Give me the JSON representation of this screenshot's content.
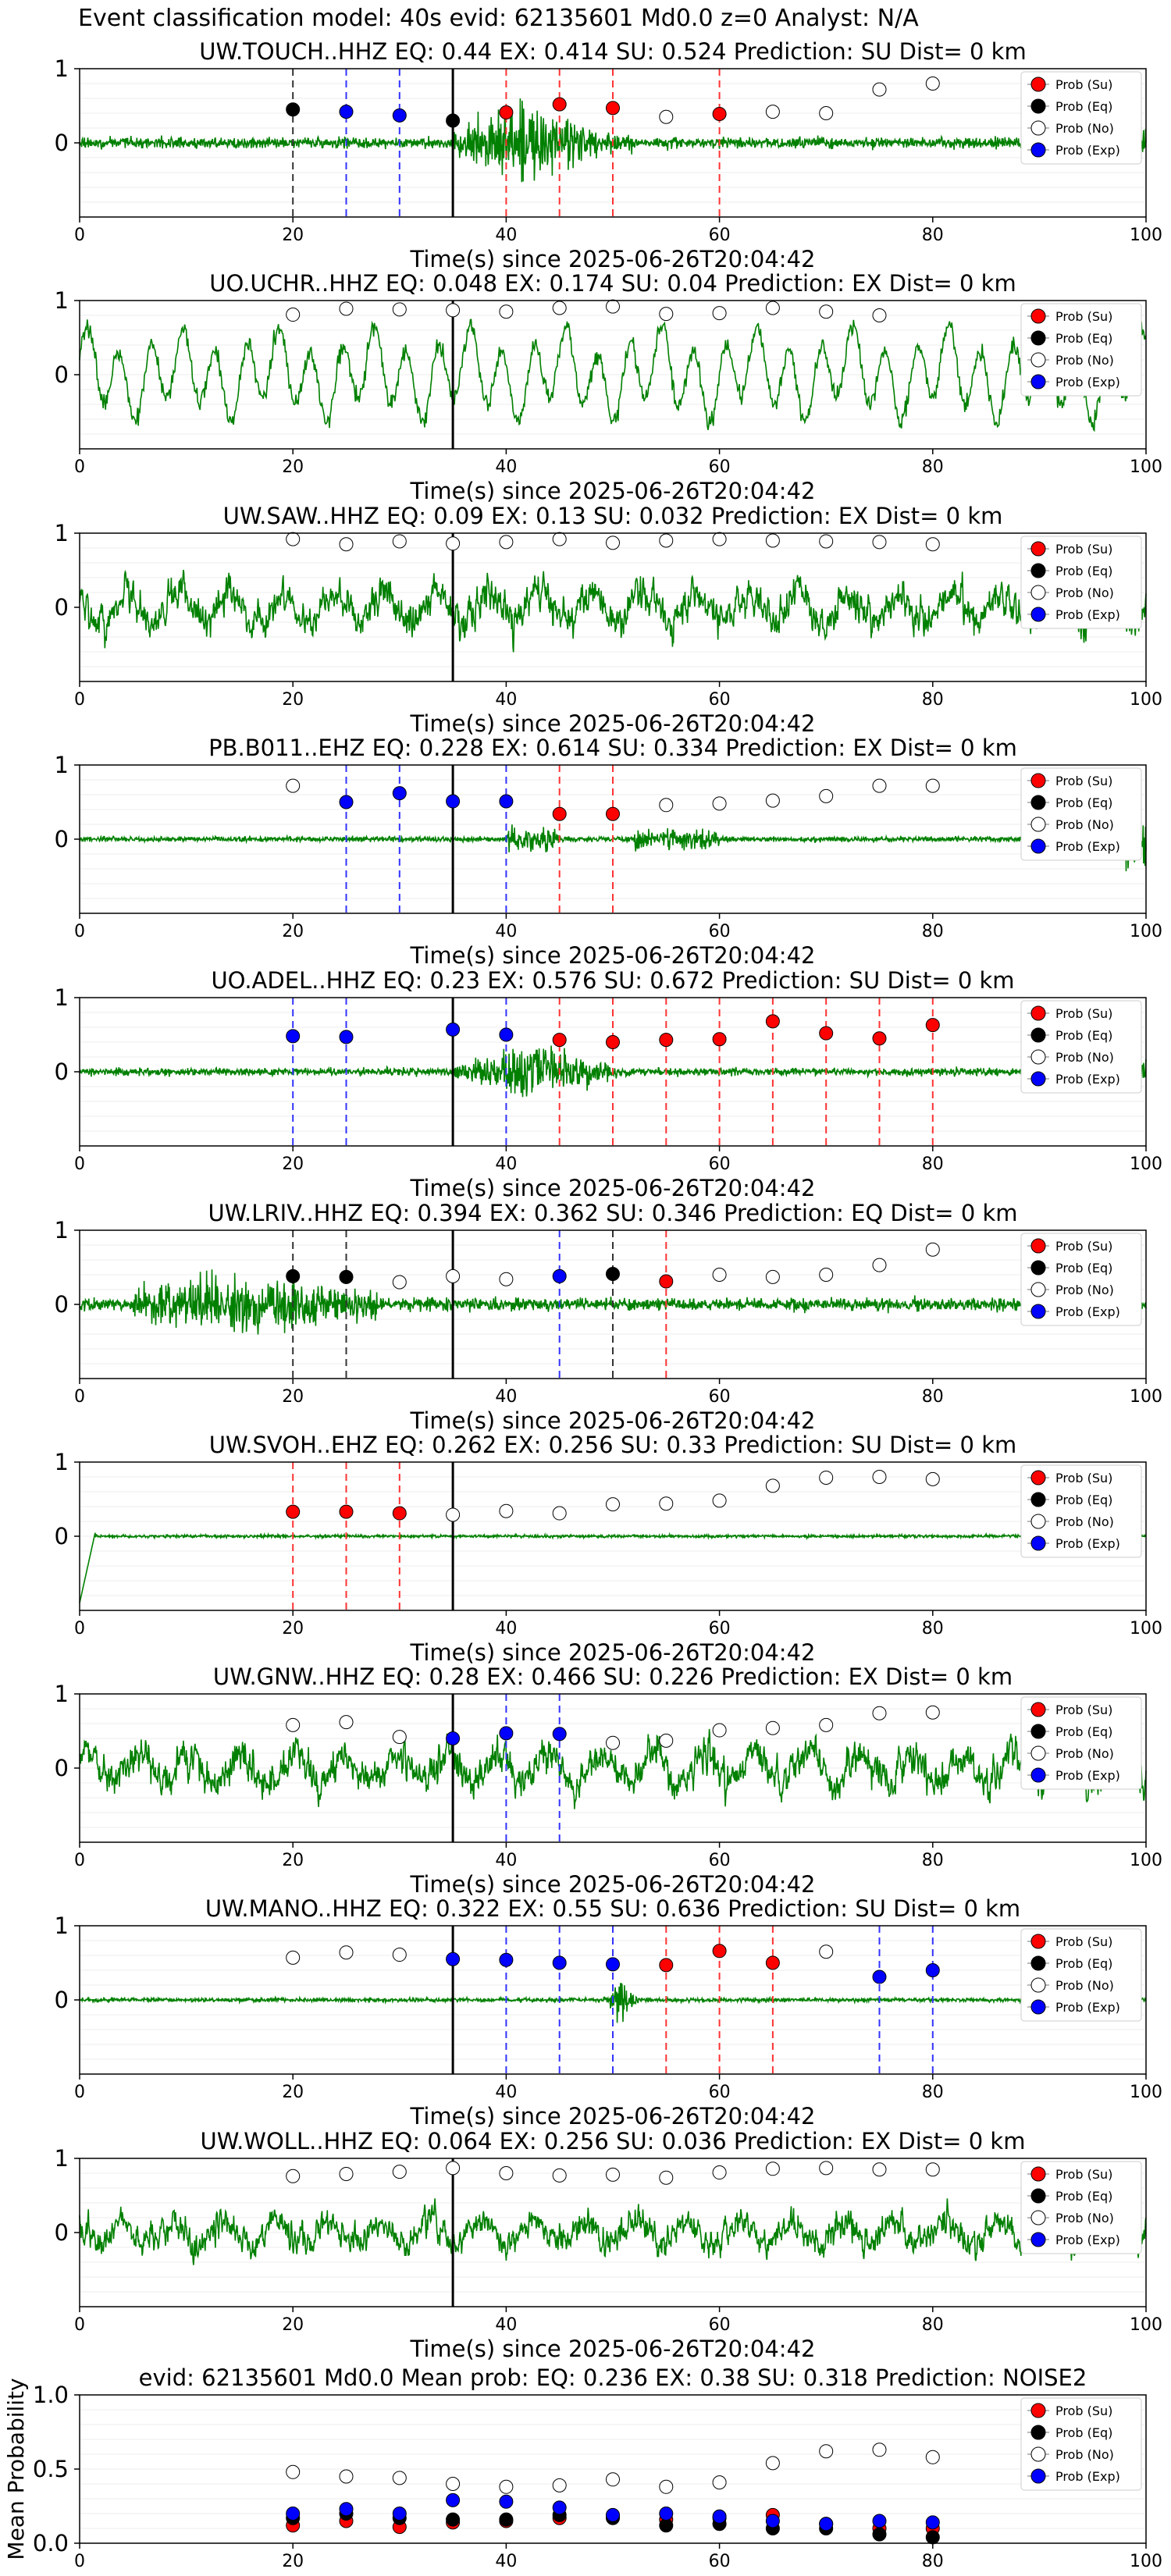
{
  "page_title": "Event classification model: 40s evid: 62135601 Md0.0 z=0 Analyst: N/A",
  "colors": {
    "waveform": "#008000",
    "su": "#ff0000",
    "eq": "#000000",
    "no": "#ffffff",
    "exp": "#0000ff",
    "su_line": "#ff3333",
    "exp_line": "#3333ff",
    "eq_line": "#333333"
  },
  "legend_labels": [
    "Prob (Su)",
    "Prob (Eq)",
    "Prob (No)",
    "Prob (Exp)"
  ],
  "chart_data": [
    {
      "type": "scatter",
      "station": "UW.TOUCH..HHZ",
      "title": "UW.TOUCH..HHZ   EQ: 0.44   EX: 0.414   SU: 0.524   Prediction: SU    Dist= 0 km",
      "xlabel": "Time(s) since 2025-06-26T20:04:42",
      "xlim": [
        0,
        100
      ],
      "ylim": [
        -1,
        1
      ],
      "xticks": [
        "0",
        "20",
        "40",
        "60",
        "80",
        "100"
      ],
      "yticks": [
        "1",
        "0"
      ],
      "onset_line_x": 35,
      "waveform_style": "impulsive",
      "waveform_amp": 0.3,
      "legend": "right",
      "x": [
        20,
        25,
        30,
        35,
        40,
        45,
        50,
        55,
        60,
        65,
        70,
        75,
        80
      ],
      "prob": [
        0.45,
        0.42,
        0.37,
        0.3,
        0.41,
        0.52,
        0.47,
        0.35,
        0.39,
        0.42,
        0.4,
        0.72,
        0.8
      ],
      "cls": [
        "eq",
        "exp",
        "exp",
        "eq",
        "su",
        "su",
        "su",
        "no",
        "su",
        "no",
        "no",
        "no",
        "no"
      ]
    },
    {
      "type": "scatter",
      "station": "UO.UCHR..HHZ",
      "title": "UO.UCHR..HHZ   EQ: 0.048   EX: 0.174   SU: 0.04   Prediction: EX    Dist= 0 km",
      "xlabel": "Time(s) since 2025-06-26T20:04:42",
      "xlim": [
        0,
        100
      ],
      "ylim": [
        -1,
        1
      ],
      "xticks": [
        "0",
        "20",
        "40",
        "60",
        "80",
        "100"
      ],
      "yticks": [
        "1",
        "0"
      ],
      "onset_line_x": 35,
      "waveform_style": "oscillating",
      "waveform_amp": 0.6,
      "legend": "right",
      "x": [
        20,
        25,
        30,
        35,
        40,
        45,
        50,
        55,
        60,
        65,
        70,
        75
      ],
      "prob": [
        0.81,
        0.89,
        0.88,
        0.87,
        0.85,
        0.9,
        0.92,
        0.82,
        0.83,
        0.9,
        0.85,
        0.8
      ],
      "cls": [
        "no",
        "no",
        "no",
        "no",
        "no",
        "no",
        "no",
        "no",
        "no",
        "no",
        "no",
        "no"
      ]
    },
    {
      "type": "scatter",
      "station": "UW.SAW..HHZ",
      "title": "UW.SAW..HHZ   EQ: 0.09   EX: 0.13   SU: 0.032   Prediction: EX    Dist= 0 km",
      "xlabel": "Time(s) since 2025-06-26T20:04:42",
      "xlim": [
        0,
        100
      ],
      "ylim": [
        -1,
        1
      ],
      "xticks": [
        "0",
        "20",
        "40",
        "60",
        "80",
        "100"
      ],
      "yticks": [
        "1",
        "0"
      ],
      "onset_line_x": 35,
      "waveform_style": "noisy",
      "waveform_amp": 0.55,
      "legend": "right",
      "x": [
        20,
        25,
        30,
        35,
        40,
        45,
        50,
        55,
        60,
        65,
        70,
        75,
        80
      ],
      "prob": [
        0.92,
        0.85,
        0.89,
        0.86,
        0.88,
        0.92,
        0.87,
        0.9,
        0.92,
        0.9,
        0.89,
        0.88,
        0.85
      ],
      "cls": [
        "no",
        "no",
        "no",
        "no",
        "no",
        "no",
        "no",
        "no",
        "no",
        "no",
        "no",
        "no",
        "no"
      ]
    },
    {
      "type": "scatter",
      "station": "PB.B011..EHZ",
      "title": "PB.B011..EHZ   EQ: 0.228   EX: 0.614   SU: 0.334   Prediction: EX    Dist= 0 km",
      "xlabel": "Time(s) since 2025-06-26T20:04:42",
      "xlim": [
        0,
        100
      ],
      "ylim": [
        -1,
        1
      ],
      "xticks": [
        "0",
        "20",
        "40",
        "60",
        "80",
        "100"
      ],
      "yticks": [
        "1",
        "0"
      ],
      "onset_line_x": 35,
      "waveform_style": "burst",
      "waveform_amp": 0.12,
      "legend": "right",
      "x": [
        20,
        25,
        30,
        35,
        40,
        45,
        50,
        55,
        60,
        65,
        70,
        75,
        80
      ],
      "prob": [
        0.72,
        0.5,
        0.62,
        0.51,
        0.51,
        0.34,
        0.34,
        0.46,
        0.48,
        0.52,
        0.58,
        0.72,
        0.72
      ],
      "cls": [
        "no",
        "exp",
        "exp",
        "exp",
        "exp",
        "su",
        "su",
        "no",
        "no",
        "no",
        "no",
        "no",
        "no"
      ]
    },
    {
      "type": "scatter",
      "station": "UO.ADEL..HHZ",
      "title": "UO.ADEL..HHZ   EQ: 0.23  EX: 0.576  SU: 0.672   Prediction: SU    Dist= 0 km",
      "xlabel": "Time(s) since 2025-06-26T20:04:42",
      "xlim": [
        0,
        100
      ],
      "ylim": [
        -1,
        1
      ],
      "xticks": [
        "0",
        "20",
        "40",
        "60",
        "80",
        "100"
      ],
      "yticks": [
        "1",
        "0"
      ],
      "onset_line_x": 35,
      "waveform_style": "impulsive",
      "waveform_amp": 0.2,
      "legend": "right",
      "x": [
        20,
        25,
        35,
        40,
        45,
        50,
        55,
        60,
        65,
        70,
        75,
        80
      ],
      "prob": [
        0.48,
        0.47,
        0.57,
        0.5,
        0.43,
        0.4,
        0.43,
        0.44,
        0.68,
        0.52,
        0.45,
        0.63
      ],
      "cls": [
        "exp",
        "exp",
        "exp",
        "exp",
        "su",
        "su",
        "su",
        "su",
        "su",
        "su",
        "su",
        "su"
      ]
    },
    {
      "type": "scatter",
      "station": "UW.LRIV..HHZ",
      "title": "UW.LRIV..HHZ   EQ: 0.394  EX: 0.362  SU: 0.346   Prediction: EQ    Dist= 0 km",
      "xlabel": "Time(s) since 2025-06-26T20:04:42",
      "xlim": [
        0,
        100
      ],
      "ylim": [
        -1,
        1
      ],
      "xticks": [
        "0",
        "20",
        "40",
        "60",
        "80",
        "100"
      ],
      "yticks": [
        "1",
        "0"
      ],
      "onset_line_x": 35,
      "waveform_style": "early",
      "waveform_amp": 0.25,
      "legend": "right",
      "x": [
        20,
        25,
        30,
        35,
        40,
        45,
        50,
        55,
        60,
        65,
        70,
        75,
        80
      ],
      "prob": [
        0.38,
        0.37,
        0.3,
        0.38,
        0.34,
        0.38,
        0.41,
        0.31,
        0.4,
        0.37,
        0.4,
        0.53,
        0.74
      ],
      "cls": [
        "eq",
        "eq",
        "no",
        "no",
        "no",
        "exp",
        "eq",
        "su",
        "no",
        "no",
        "no",
        "no",
        "no"
      ]
    },
    {
      "type": "scatter",
      "station": "UW.SVOH..EHZ",
      "title": "UW.SVOH..EHZ   EQ: 0.262  EX: 0.256  SU: 0.33   Prediction: SU    Dist= 0 km",
      "xlabel": "Time(s) since 2025-06-26T20:04:42",
      "xlim": [
        0,
        100
      ],
      "ylim": [
        -1,
        1
      ],
      "xticks": [
        "0",
        "20",
        "40",
        "60",
        "80",
        "100"
      ],
      "yticks": [
        "1",
        "0"
      ],
      "onset_line_x": 35,
      "waveform_style": "flat",
      "waveform_amp": 0.06,
      "legend": "right",
      "x": [
        20,
        25,
        30,
        35,
        40,
        45,
        50,
        55,
        60,
        65,
        70,
        75,
        80
      ],
      "prob": [
        0.33,
        0.33,
        0.31,
        0.29,
        0.34,
        0.31,
        0.43,
        0.44,
        0.48,
        0.68,
        0.79,
        0.8,
        0.77
      ],
      "cls": [
        "su",
        "su",
        "su",
        "no",
        "no",
        "no",
        "no",
        "no",
        "no",
        "no",
        "no",
        "no",
        "no"
      ]
    },
    {
      "type": "scatter",
      "station": "UW.GNW..HHZ",
      "title": "UW.GNW..HHZ   EQ: 0.28  EX: 0.466  SU: 0.226   Prediction: EX    Dist= 0 km",
      "xlabel": "Time(s) since 2025-06-26T20:04:42",
      "xlim": [
        0,
        100
      ],
      "ylim": [
        -1,
        1
      ],
      "xticks": [
        "0",
        "20",
        "40",
        "60",
        "80",
        "100"
      ],
      "yticks": [
        "1",
        "0"
      ],
      "onset_line_x": 35,
      "waveform_style": "noisy",
      "waveform_amp": 0.55,
      "legend": "right",
      "x": [
        20,
        25,
        30,
        35,
        40,
        45,
        50,
        55,
        60,
        65,
        70,
        75,
        80
      ],
      "prob": [
        0.58,
        0.62,
        0.42,
        0.4,
        0.47,
        0.46,
        0.34,
        0.37,
        0.51,
        0.54,
        0.58,
        0.74,
        0.75
      ],
      "cls": [
        "no",
        "no",
        "no",
        "exp",
        "exp",
        "exp",
        "no",
        "no",
        "no",
        "no",
        "no",
        "no",
        "no"
      ]
    },
    {
      "type": "scatter",
      "station": "UW.MANO..HHZ",
      "title": "UW.MANO..HHZ   EQ: 0.322   EX: 0.55   SU: 0.636   Prediction: SU    Dist= 0 km",
      "xlabel": "Time(s) since 2025-06-26T20:04:42",
      "xlim": [
        0,
        100
      ],
      "ylim": [
        -1,
        1
      ],
      "xticks": [
        "0",
        "20",
        "40",
        "60",
        "80",
        "100"
      ],
      "yticks": [
        "1",
        "0"
      ],
      "onset_line_x": 35,
      "waveform_style": "spike",
      "waveform_amp": 0.08,
      "legend": "right",
      "x": [
        20,
        25,
        30,
        35,
        40,
        45,
        50,
        55,
        60,
        65,
        70,
        75,
        80
      ],
      "prob": [
        0.57,
        0.64,
        0.61,
        0.55,
        0.54,
        0.5,
        0.48,
        0.47,
        0.66,
        0.5,
        0.65,
        0.31,
        0.4
      ],
      "cls": [
        "no",
        "no",
        "no",
        "exp",
        "exp",
        "exp",
        "exp",
        "su",
        "su",
        "su",
        "no",
        "exp",
        "exp"
      ]
    },
    {
      "type": "scatter",
      "station": "UW.WOLL..HHZ",
      "title": "UW.WOLL..HHZ   EQ: 0.064  EX: 0.256  SU: 0.036   Prediction: EX    Dist= 0 km",
      "xlabel": "Time(s) since 2025-06-26T20:04:42",
      "xlim": [
        0,
        100
      ],
      "ylim": [
        -1,
        1
      ],
      "xticks": [
        "0",
        "20",
        "40",
        "60",
        "80",
        "100"
      ],
      "yticks": [
        "1",
        "0"
      ],
      "onset_line_x": 35,
      "waveform_style": "noisy",
      "waveform_amp": 0.45,
      "legend": "right",
      "x": [
        20,
        25,
        30,
        35,
        40,
        45,
        50,
        55,
        60,
        65,
        70,
        75,
        80
      ],
      "prob": [
        0.76,
        0.79,
        0.82,
        0.87,
        0.8,
        0.77,
        0.78,
        0.74,
        0.81,
        0.86,
        0.87,
        0.85,
        0.85
      ],
      "cls": [
        "no",
        "no",
        "no",
        "no",
        "no",
        "no",
        "no",
        "no",
        "no",
        "no",
        "no",
        "no",
        "no"
      ]
    },
    {
      "type": "scatter",
      "title": "evid: 62135601   Md0.0   Mean prob:   EQ: 0.236  EX: 0.38  SU: 0.318   Prediction: NOISE2",
      "ylabel": "Mean Probability",
      "xlim": [
        0,
        100
      ],
      "ylim": [
        0,
        1
      ],
      "xticks": [
        "0",
        "20",
        "40",
        "60",
        "80",
        "100"
      ],
      "yticks": [
        "1.0",
        "0.5",
        "0.0"
      ],
      "legend": "right",
      "x": [
        20,
        25,
        30,
        35,
        40,
        45,
        50,
        55,
        60,
        65,
        70,
        75,
        80
      ],
      "series": [
        {
          "name": "Prob (Su)",
          "cls": "su",
          "values": [
            0.12,
            0.15,
            0.11,
            0.14,
            0.15,
            0.17,
            0.18,
            0.16,
            0.17,
            0.19,
            0.13,
            0.1,
            0.1
          ]
        },
        {
          "name": "Prob (Eq)",
          "cls": "eq",
          "values": [
            0.17,
            0.2,
            0.17,
            0.16,
            0.16,
            0.19,
            0.17,
            0.12,
            0.13,
            0.1,
            0.1,
            0.06,
            0.04
          ]
        },
        {
          "name": "Prob (No)",
          "cls": "no",
          "values": [
            0.48,
            0.45,
            0.44,
            0.4,
            0.38,
            0.39,
            0.43,
            0.38,
            0.41,
            0.54,
            0.62,
            0.63,
            0.58
          ]
        },
        {
          "name": "Prob (Exp)",
          "cls": "exp",
          "values": [
            0.2,
            0.23,
            0.2,
            0.29,
            0.28,
            0.24,
            0.19,
            0.2,
            0.18,
            0.15,
            0.13,
            0.15,
            0.14
          ]
        }
      ]
    }
  ]
}
